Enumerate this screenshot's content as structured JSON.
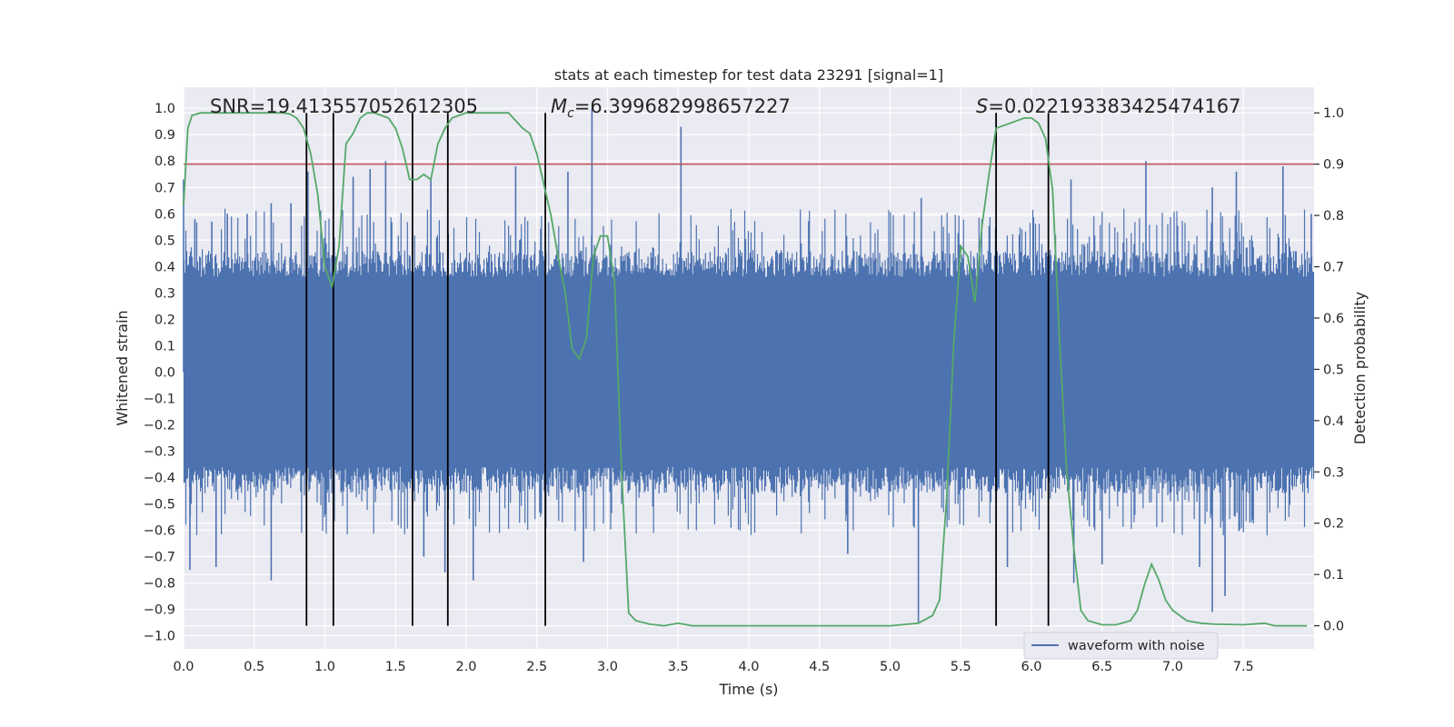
{
  "chart_data": {
    "type": "line",
    "title": "stats at each timestep for test data 23291 [signal=1]",
    "xlabel": "Time (s)",
    "ylabel": "Whitened strain",
    "y2label": "Detection probability",
    "xlim": [
      0.0,
      8.0
    ],
    "ylim": [
      -1.05,
      1.08
    ],
    "y2lim": [
      -0.045,
      1.05
    ],
    "xticks": [
      0.0,
      0.5,
      1.0,
      1.5,
      2.0,
      2.5,
      3.0,
      3.5,
      4.0,
      4.5,
      5.0,
      5.5,
      6.0,
      6.5,
      7.0,
      7.5
    ],
    "xtick_labels": [
      "0.0",
      "0.5",
      "1.0",
      "1.5",
      "2.0",
      "2.5",
      "3.0",
      "3.5",
      "4.0",
      "4.5",
      "5.0",
      "5.5",
      "6.0",
      "6.5",
      "7.0",
      "7.5"
    ],
    "yticks": [
      1.0,
      0.9,
      0.8,
      0.7,
      0.6,
      0.5,
      0.4,
      0.3,
      0.2,
      0.1,
      0.0,
      -0.1,
      -0.2,
      -0.3,
      -0.4,
      -0.5,
      -0.6,
      -0.7,
      -0.8,
      -0.9,
      -1.0
    ],
    "ytick_labels": [
      "1.0",
      "0.9",
      "0.8",
      "0.7",
      "0.6",
      "0.5",
      "0.4",
      "0.3",
      "0.2",
      "0.1",
      "0.0",
      "−0.1",
      "−0.2",
      "−0.3",
      "−0.4",
      "−0.5",
      "−0.6",
      "−0.7",
      "−0.8",
      "−0.9",
      "−1.0"
    ],
    "y2ticks": [
      1.0,
      0.9,
      0.8,
      0.7,
      0.6,
      0.5,
      0.4,
      0.3,
      0.2,
      0.1,
      0.0
    ],
    "y2tick_labels": [
      "1.0",
      "0.9",
      "0.8",
      "0.7",
      "0.6",
      "0.5",
      "0.4",
      "0.3",
      "0.2",
      "0.1",
      "0.0"
    ],
    "grid": true,
    "legend": {
      "placement": "lower-right",
      "entries": [
        "waveform with noise"
      ]
    },
    "annotations": {
      "snr": "SNR=19.413557052612305",
      "mc_symbol": "M",
      "mc_subscript": "c",
      "mc_value": "=6.399682998657227",
      "s_symbol": "S",
      "s_value": "=0.022193383425474167"
    },
    "threshold": {
      "axis": "right",
      "value": 0.9,
      "color": "#c44e52"
    },
    "vertical_lines_x": [
      0.87,
      1.06,
      1.62,
      1.87,
      2.56,
      5.75,
      6.12
    ],
    "waveform": {
      "name": "waveform with noise",
      "color": "#4c72b0",
      "x_range": [
        0.0,
        8.0
      ],
      "noise_envelope_approx": [
        -0.45,
        0.45
      ],
      "spikes": [
        [
          0.0,
          0.73
        ],
        [
          0.045,
          -0.75
        ],
        [
          0.08,
          0.58
        ],
        [
          0.2,
          0.57
        ],
        [
          0.23,
          -0.74
        ],
        [
          0.31,
          0.6
        ],
        [
          0.45,
          0.6
        ],
        [
          0.62,
          -0.79
        ],
        [
          0.62,
          0.64
        ],
        [
          0.76,
          0.64
        ],
        [
          0.88,
          0.76
        ],
        [
          1.2,
          0.74
        ],
        [
          1.32,
          0.77
        ],
        [
          1.43,
          0.8
        ],
        [
          1.7,
          -0.7
        ],
        [
          1.75,
          0.73
        ],
        [
          1.85,
          -0.76
        ],
        [
          2.05,
          -0.79
        ],
        [
          2.35,
          0.78
        ],
        [
          2.72,
          0.76
        ],
        [
          2.83,
          -0.72
        ],
        [
          2.89,
          1.0
        ],
        [
          3.52,
          0.93
        ],
        [
          4.7,
          -0.69
        ],
        [
          5.2,
          -0.95
        ],
        [
          5.22,
          0.66
        ],
        [
          5.83,
          -0.74
        ],
        [
          6.28,
          0.73
        ],
        [
          6.3,
          -0.8
        ],
        [
          6.5,
          -0.73
        ],
        [
          6.81,
          0.8
        ],
        [
          7.19,
          -0.74
        ],
        [
          7.28,
          -0.91
        ],
        [
          7.28,
          0.7
        ],
        [
          7.37,
          -0.85
        ],
        [
          7.45,
          0.76
        ],
        [
          7.78,
          0.78
        ],
        [
          7.98,
          0.6
        ]
      ]
    },
    "detection_probability": {
      "color": "#55a868",
      "x": [
        0.0,
        0.03,
        0.06,
        0.12,
        0.2,
        0.3,
        0.4,
        0.5,
        0.6,
        0.7,
        0.75,
        0.8,
        0.85,
        0.9,
        0.95,
        1.0,
        1.05,
        1.1,
        1.15,
        1.2,
        1.25,
        1.3,
        1.35,
        1.4,
        1.45,
        1.5,
        1.55,
        1.6,
        1.65,
        1.7,
        1.75,
        1.8,
        1.85,
        1.9,
        1.95,
        2.0,
        2.05,
        2.1,
        2.2,
        2.3,
        2.4,
        2.45,
        2.5,
        2.55,
        2.6,
        2.65,
        2.7,
        2.75,
        2.8,
        2.85,
        2.9,
        2.95,
        3.0,
        3.05,
        3.1,
        3.15,
        3.2,
        3.3,
        3.4,
        3.5,
        3.6,
        3.8,
        4.0,
        4.5,
        5.0,
        5.2,
        5.3,
        5.35,
        5.4,
        5.45,
        5.5,
        5.55,
        5.6,
        5.65,
        5.7,
        5.75,
        5.8,
        5.85,
        5.9,
        5.95,
        6.0,
        6.05,
        6.1,
        6.15,
        6.2,
        6.25,
        6.3,
        6.35,
        6.4,
        6.5,
        6.6,
        6.7,
        6.75,
        6.8,
        6.85,
        6.9,
        6.95,
        7.0,
        7.1,
        7.2,
        7.3,
        7.5,
        7.65,
        7.72,
        7.8,
        7.95
      ],
      "y": [
        0.82,
        0.97,
        0.995,
        1.0,
        1.0,
        1.0,
        1.0,
        1.0,
        1.0,
        1.0,
        0.998,
        0.99,
        0.97,
        0.92,
        0.84,
        0.7,
        0.66,
        0.74,
        0.94,
        0.96,
        0.99,
        1.0,
        1.0,
        0.995,
        0.99,
        0.97,
        0.93,
        0.87,
        0.87,
        0.88,
        0.87,
        0.94,
        0.97,
        0.99,
        0.995,
        1.0,
        1.0,
        1.0,
        1.0,
        1.0,
        0.97,
        0.96,
        0.92,
        0.86,
        0.8,
        0.72,
        0.65,
        0.54,
        0.52,
        0.56,
        0.72,
        0.76,
        0.76,
        0.67,
        0.3,
        0.025,
        0.01,
        0.003,
        0.0,
        0.005,
        0.0,
        0.0,
        0.0,
        0.0,
        0.0,
        0.005,
        0.02,
        0.05,
        0.25,
        0.55,
        0.74,
        0.72,
        0.63,
        0.78,
        0.88,
        0.97,
        0.975,
        0.98,
        0.985,
        0.99,
        0.99,
        0.98,
        0.95,
        0.85,
        0.55,
        0.3,
        0.15,
        0.03,
        0.01,
        0.002,
        0.002,
        0.01,
        0.03,
        0.08,
        0.12,
        0.09,
        0.05,
        0.03,
        0.01,
        0.005,
        0.003,
        0.002,
        0.005,
        0.0,
        0.0,
        0.0
      ]
    }
  }
}
